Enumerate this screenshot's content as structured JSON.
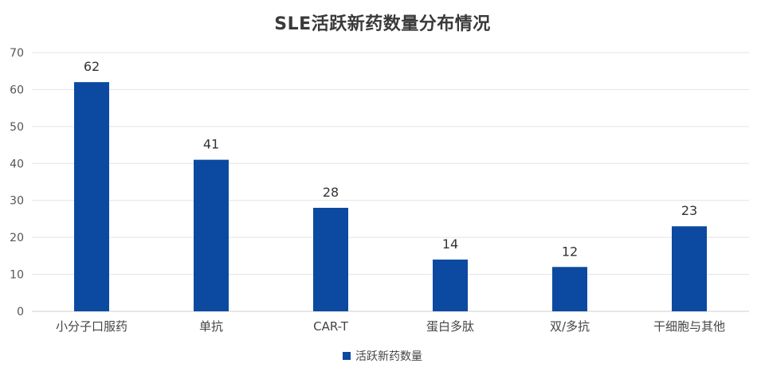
{
  "chart_data": {
    "type": "bar",
    "title": "SLE活跃新药数量分布情况",
    "categories": [
      "小分子口服药",
      "单抗",
      "CAR-T",
      "蛋白多肽",
      "双/多抗",
      "干细胞与其他"
    ],
    "series": [
      {
        "name": "活跃新药数量",
        "values": [
          62,
          41,
          28,
          14,
          12,
          23
        ],
        "color": "#0b4aa0"
      }
    ],
    "xlabel": "",
    "ylabel": "",
    "ylim": [
      0,
      70
    ],
    "yticks": [
      0,
      10,
      20,
      30,
      40,
      50,
      60,
      70
    ],
    "grid": true,
    "legend_position": "bottom"
  }
}
